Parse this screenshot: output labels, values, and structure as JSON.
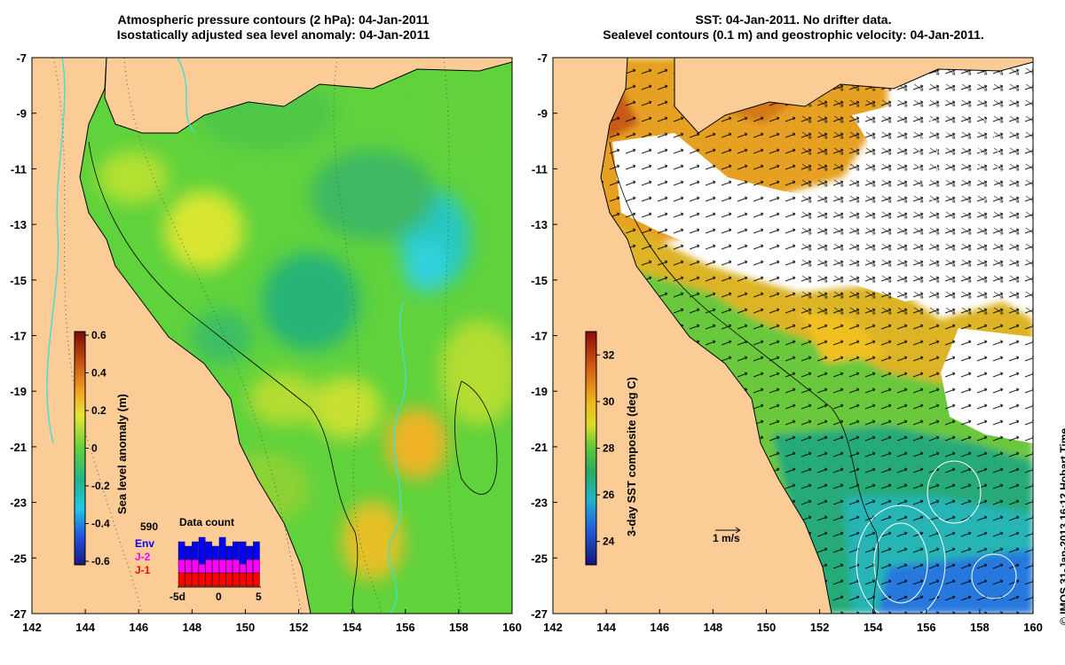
{
  "left_panel": {
    "title_line1": "Atmospheric pressure contours (2 hPa): 04-Jan-2011",
    "title_line2": "Isostatically adjusted sea level anomaly: 04-Jan-2011",
    "colorbar": {
      "label": "Sea level anomaly (m)",
      "ticks": [
        "0.6",
        "0.4",
        "0.2",
        "0",
        "-0.2",
        "-0.4",
        "-0.6"
      ],
      "range": [
        -0.6,
        0.6
      ]
    },
    "inset": {
      "title": "Data count",
      "count": "590",
      "legend": [
        {
          "name": "Env",
          "color": "#0000ff"
        },
        {
          "name": "J-2",
          "color": "#ff00ff"
        },
        {
          "name": "J-1",
          "color": "#ff0000"
        }
      ],
      "xticks": [
        "-5d",
        "0",
        "5"
      ],
      "bars": {
        "j1": [
          3,
          3,
          3,
          3,
          3,
          3,
          3,
          3,
          3,
          3,
          3,
          3
        ],
        "j2": [
          3,
          3,
          3,
          2,
          3,
          3,
          3,
          3,
          3,
          2,
          3,
          3
        ],
        "env": [
          4,
          3,
          4,
          6,
          4,
          3,
          5,
          3,
          4,
          5,
          3,
          4
        ]
      }
    }
  },
  "right_panel": {
    "title_line1": "SST: 04-Jan-2011. No drifter data.",
    "title_line2": "Sealevel contours (0.1 m) and geostrophic velocity: 04-Jan-2011.",
    "colorbar": {
      "label": "3-day SST composite (deg C)",
      "ticks": [
        "32",
        "30",
        "28",
        "26",
        "24"
      ],
      "range": [
        23,
        33
      ]
    },
    "scale_label": "1 m/s"
  },
  "axes": {
    "lat_ticks": [
      "-7",
      "-9",
      "-11",
      "-13",
      "-15",
      "-17",
      "-19",
      "-21",
      "-23",
      "-25",
      "-27"
    ],
    "lon_ticks": [
      "142",
      "144",
      "146",
      "148",
      "150",
      "152",
      "154",
      "156",
      "158",
      "160"
    ],
    "lat_range": [
      -27,
      -7
    ],
    "lon_range": [
      142,
      160
    ]
  },
  "credit": "© IMOS 31-Jan-2013 16:12 Hobart Time",
  "colors": {
    "land": "#fccc96",
    "sla_mid": "#5fd23c",
    "sst_mid": "#3cb432",
    "coast": "#000000",
    "river": "#40e0d0"
  }
}
